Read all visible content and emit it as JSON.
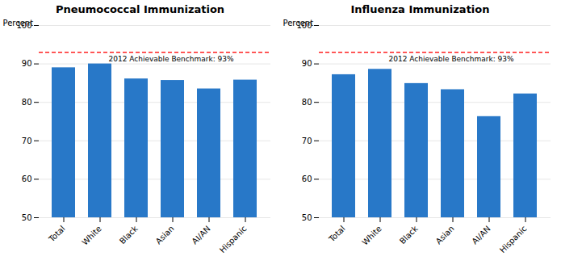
{
  "chart_data": [
    {
      "type": "bar",
      "title": "Pneumococcal Immunization",
      "categories": [
        "Total",
        "White",
        "Black",
        "Asian",
        "AI/AN",
        "Hispanic"
      ],
      "values": [
        89.0,
        90.0,
        86.1,
        85.7,
        83.5,
        85.8
      ],
      "color": "#2878C8",
      "ylabel": "Percent",
      "ylim": [
        50,
        100
      ],
      "yticks": [
        50,
        60,
        70,
        80,
        90,
        100
      ],
      "grid": true,
      "benchmark": {
        "value": 93,
        "label": "2012 Achievable Benchmark: 93%",
        "color": "#FF2020"
      }
    },
    {
      "type": "bar",
      "title": "Influenza Immunization",
      "categories": [
        "Total",
        "White",
        "Black",
        "Asian",
        "AI/AN",
        "Hispanic"
      ],
      "values": [
        87.2,
        88.6,
        84.9,
        83.3,
        76.3,
        82.2
      ],
      "color": "#2878C8",
      "ylabel": "Percent",
      "ylim": [
        50,
        100
      ],
      "yticks": [
        50,
        60,
        70,
        80,
        90,
        100
      ],
      "grid": true,
      "benchmark": {
        "value": 93,
        "label": "2012 Achievable Benchmark: 93%",
        "color": "#FF2020"
      }
    }
  ]
}
